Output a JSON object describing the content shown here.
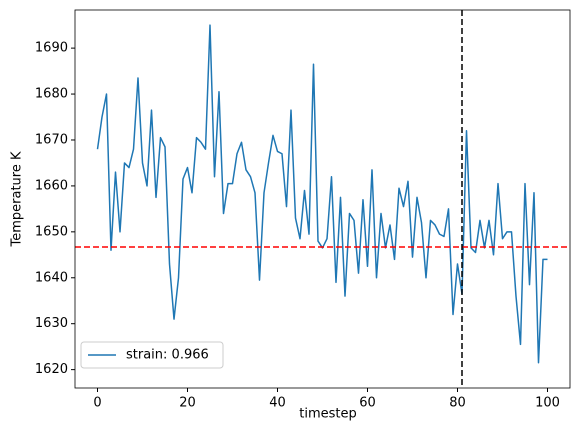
{
  "chart_data": {
    "type": "line",
    "xlabel": "timestep",
    "ylabel": "Temperature K",
    "x": [
      0,
      1,
      2,
      3,
      4,
      5,
      6,
      7,
      8,
      9,
      10,
      11,
      12,
      13,
      14,
      15,
      16,
      17,
      18,
      19,
      20,
      21,
      22,
      23,
      24,
      25,
      26,
      27,
      28,
      29,
      30,
      31,
      32,
      33,
      34,
      35,
      36,
      37,
      38,
      39,
      40,
      41,
      42,
      43,
      44,
      45,
      46,
      47,
      48,
      49,
      50,
      51,
      52,
      53,
      54,
      55,
      56,
      57,
      58,
      59,
      60,
      61,
      62,
      63,
      64,
      65,
      66,
      67,
      68,
      69,
      70,
      71,
      72,
      73,
      74,
      75,
      76,
      77,
      78,
      79,
      80,
      81,
      82,
      83,
      84,
      85,
      86,
      87,
      88,
      89,
      90,
      91,
      92,
      93,
      94,
      95,
      96,
      97,
      98,
      99,
      100
    ],
    "series": [
      {
        "name": "strain: 0.966",
        "color": "#1f77b4",
        "values": [
          1668,
          1675,
          1680,
          1646,
          1663,
          1650,
          1665,
          1664,
          1668,
          1683.5,
          1665,
          1660,
          1676.5,
          1657.5,
          1670.5,
          1668.5,
          1643,
          1631,
          1640,
          1661.5,
          1664,
          1658.5,
          1670.5,
          1669.5,
          1668,
          1695,
          1662,
          1680.5,
          1654,
          1660.5,
          1660.5,
          1667,
          1669.5,
          1663.5,
          1662,
          1658.5,
          1639.5,
          1658.5,
          1665,
          1671,
          1667.5,
          1667,
          1655.5,
          1676.5,
          1653,
          1648.5,
          1659,
          1649.5,
          1686.5,
          1648,
          1646.5,
          1648.5,
          1662,
          1639,
          1657.5,
          1636,
          1654,
          1652.5,
          1641,
          1657,
          1642.5,
          1663.5,
          1640,
          1654,
          1646.5,
          1651.5,
          1644,
          1659.5,
          1655.5,
          1661,
          1644.5,
          1657.5,
          1652,
          1640,
          1652.5,
          1651.5,
          1649.5,
          1649,
          1655,
          1632,
          1643,
          1636.5,
          1672,
          1646.5,
          1645.5,
          1652.5,
          1646.5,
          1652.5,
          1645,
          1660.5,
          1648.5,
          1650,
          1650,
          1636,
          1625.5,
          1660.5,
          1638.5,
          1658.5,
          1621.5,
          1644,
          1644
        ]
      }
    ],
    "hline": {
      "value": 1646.7,
      "color": "#ff0000"
    },
    "vline": {
      "value": 81,
      "color": "#000000"
    },
    "xlim": [
      -5,
      105
    ],
    "ylim": [
      1616,
      1698.3
    ],
    "xticks": [
      0,
      20,
      40,
      60,
      80,
      100
    ],
    "yticks": [
      1620,
      1630,
      1640,
      1650,
      1660,
      1670,
      1680,
      1690
    ],
    "grid": false,
    "legend": "lower left"
  }
}
